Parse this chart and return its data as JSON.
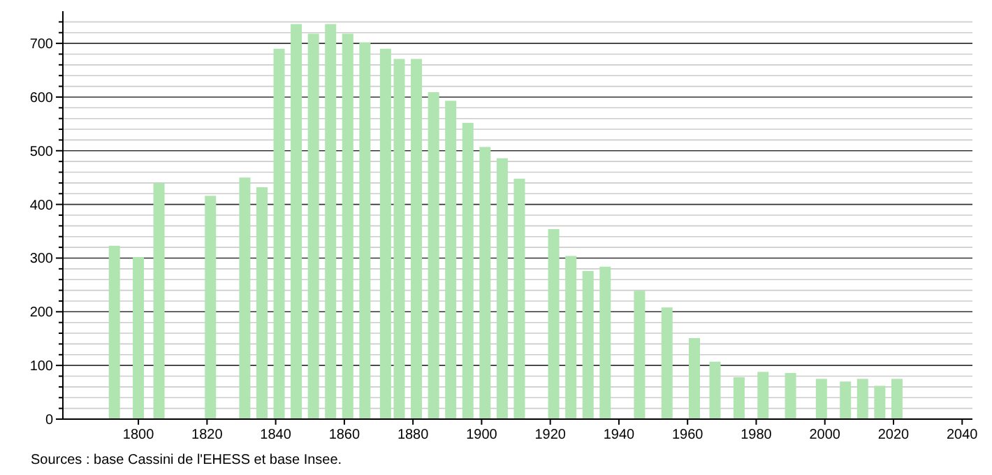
{
  "chart_data": {
    "type": "bar",
    "x": [
      1793,
      1800,
      1806,
      1821,
      1831,
      1836,
      1841,
      1846,
      1851,
      1856,
      1861,
      1866,
      1872,
      1876,
      1881,
      1886,
      1891,
      1896,
      1901,
      1906,
      1911,
      1921,
      1926,
      1931,
      1936,
      1946,
      1954,
      1962,
      1968,
      1975,
      1982,
      1990,
      1999,
      2006,
      2011,
      2016,
      2021
    ],
    "values": [
      323,
      302,
      440,
      416,
      450,
      432,
      690,
      736,
      718,
      736,
      718,
      702,
      690,
      671,
      671,
      609,
      593,
      552,
      507,
      486,
      448,
      354,
      304,
      276,
      284,
      239,
      208,
      151,
      107,
      78,
      88,
      86,
      75,
      70,
      75,
      62,
      75
    ],
    "color": "#b0e4b0",
    "xlim": [
      1778,
      2043
    ],
    "xticks": [
      1800,
      1820,
      1840,
      1860,
      1880,
      1900,
      1920,
      1940,
      1960,
      1980,
      2000,
      2020,
      2040
    ],
    "ylim": [
      0,
      760
    ],
    "yticks": [
      0,
      {
        "value": 20,
        "label": null
      },
      {
        "value": 40,
        "label": null
      },
      {
        "value": 60,
        "label": null
      },
      {
        "value": 80,
        "label": null
      },
      100,
      {
        "value": 120,
        "label": null
      },
      {
        "value": 140,
        "label": null
      },
      {
        "value": 160,
        "label": null
      },
      {
        "value": 180,
        "label": null
      },
      200,
      {
        "value": 220,
        "label": null
      },
      {
        "value": 240,
        "label": null
      },
      {
        "value": 260,
        "label": null
      },
      {
        "value": 280,
        "label": null
      },
      300,
      {
        "value": 320,
        "label": null
      },
      {
        "value": 340,
        "label": null
      },
      {
        "value": 360,
        "label": null
      },
      {
        "value": 380,
        "label": null
      },
      400,
      {
        "value": 420,
        "label": null
      },
      {
        "value": 440,
        "label": null
      },
      {
        "value": 460,
        "label": null
      },
      {
        "value": 480,
        "label": null
      },
      500,
      {
        "value": 520,
        "label": null
      },
      {
        "value": 540,
        "label": null
      },
      {
        "value": 560,
        "label": null
      },
      {
        "value": 580,
        "label": null
      },
      600,
      {
        "value": 620,
        "label": null
      },
      {
        "value": 640,
        "label": null
      },
      {
        "value": 660,
        "label": null
      },
      {
        "value": 680,
        "label": null
      },
      700,
      {
        "value": 720,
        "label": null
      },
      {
        "value": 740,
        "label": null
      }
    ],
    "grid": "y",
    "annotations": [
      "Sources : base Cassini de l'EHESS et base Insee."
    ]
  }
}
